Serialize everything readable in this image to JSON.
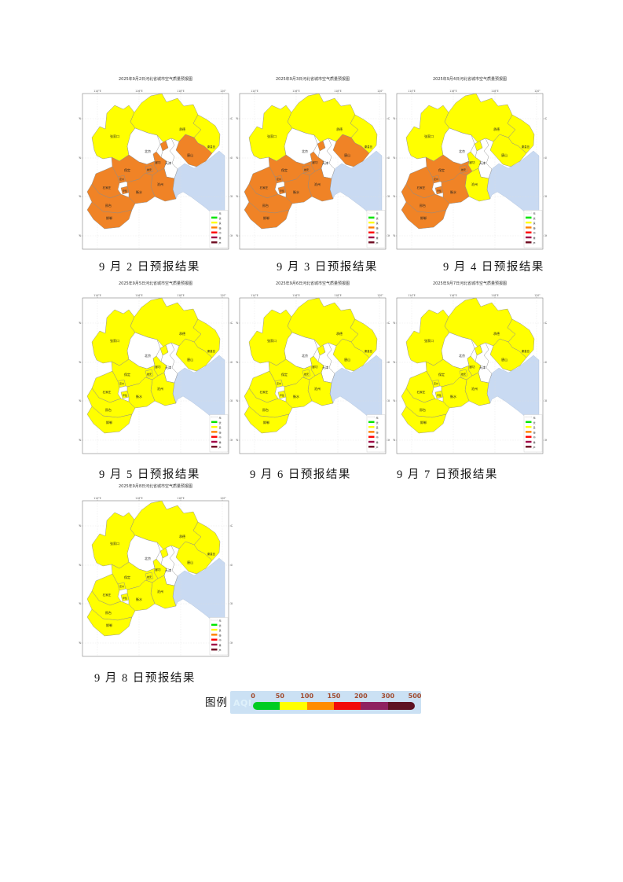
{
  "figures": [
    {
      "title": "2025年9月2日河北省城市空气质量预报图",
      "caption": "9 月 2 日预报结果",
      "levels": {
        "zhangjiakou": "liang",
        "chengde": "liang",
        "qinhuangdao": "liang",
        "tangshan": "qingdu",
        "langfang": "qingdu",
        "baoding": "qingdu",
        "xiongan": "qingdu",
        "cangzhou": "qingdu",
        "dingzhou": "qingdu",
        "shijiazhuang": "qingdu",
        "xinji": "qingdu",
        "hengshui": "qingdu",
        "xingtai": "qingdu",
        "handan": "qingdu"
      }
    },
    {
      "title": "2025年9月3日河北省城市空气质量预报图",
      "caption": "9 月 3 日预报结果",
      "levels": {
        "zhangjiakou": "liang",
        "chengde": "liang",
        "qinhuangdao": "liang",
        "tangshan": "qingdu",
        "langfang": "qingdu",
        "baoding": "qingdu",
        "xiongan": "qingdu",
        "cangzhou": "qingdu",
        "dingzhou": "qingdu",
        "shijiazhuang": "qingdu",
        "xinji": "qingdu",
        "hengshui": "qingdu",
        "xingtai": "qingdu",
        "handan": "qingdu"
      }
    },
    {
      "title": "2025年9月4日河北省城市空气质量预报图",
      "caption": "9 月 4 日预报结果",
      "levels": {
        "zhangjiakou": "liang",
        "chengde": "liang",
        "qinhuangdao": "liang",
        "tangshan": "liang",
        "langfang": "liang",
        "cangzhou": "liang",
        "baoding": "qingdu",
        "xiongan": "qingdu",
        "dingzhou": "qingdu",
        "shijiazhuang": "qingdu",
        "xinji": "qingdu",
        "hengshui": "qingdu",
        "xingtai": "qingdu",
        "handan": "qingdu"
      }
    },
    {
      "title": "2025年9月5日河北省城市空气质量预报图",
      "caption": "9 月 5 日预报结果",
      "levels": {
        "zhangjiakou": "liang",
        "chengde": "liang",
        "qinhuangdao": "liang",
        "tangshan": "liang",
        "langfang": "liang",
        "baoding": "liang",
        "xiongan": "liang",
        "cangzhou": "liang",
        "dingzhou": "liang",
        "shijiazhuang": "liang",
        "xinji": "liang",
        "hengshui": "liang",
        "xingtai": "liang",
        "handan": "liang"
      }
    },
    {
      "title": "2025年9月6日河北省城市空气质量预报图",
      "caption": "9 月 6 日预报结果",
      "levels": {
        "zhangjiakou": "liang",
        "chengde": "liang",
        "qinhuangdao": "liang",
        "tangshan": "liang",
        "langfang": "liang",
        "baoding": "liang",
        "xiongan": "liang",
        "cangzhou": "liang",
        "dingzhou": "liang",
        "shijiazhuang": "liang",
        "xinji": "liang",
        "hengshui": "liang",
        "xingtai": "liang",
        "handan": "liang"
      }
    },
    {
      "title": "2025年9月7日河北省城市空气质量预报图",
      "caption": "9 月 7 日预报结果",
      "levels": {
        "zhangjiakou": "liang",
        "chengde": "liang",
        "qinhuangdao": "liang",
        "tangshan": "liang",
        "langfang": "liang",
        "baoding": "liang",
        "xiongan": "liang",
        "cangzhou": "liang",
        "dingzhou": "liang",
        "shijiazhuang": "liang",
        "xinji": "liang",
        "hengshui": "liang",
        "xingtai": "liang",
        "handan": "liang"
      }
    },
    {
      "title": "2025年9月8日河北省城市空气质量预报图",
      "caption": "9 月 8 日预报结果",
      "levels": {
        "zhangjiakou": "liang",
        "chengde": "liang",
        "qinhuangdao": "liang",
        "tangshan": "liang",
        "langfang": "liang",
        "baoding": "liang",
        "xiongan": "liang",
        "cangzhou": "liang",
        "dingzhou": "liang",
        "shijiazhuang": "liang",
        "xinji": "liang",
        "hengshui": "liang",
        "xingtai": "liang",
        "handan": "liang"
      }
    }
  ],
  "cities": {
    "zhangjiakou": "张家口",
    "chengde": "承德",
    "qinhuangdao": "秦皇岛",
    "tangshan": "唐山",
    "beijing": "北京",
    "tianjin": "天津",
    "langfang": "廊坊",
    "baoding": "保定",
    "xiongan": "雄安",
    "cangzhou": "沧州",
    "dingzhou": "定州",
    "shijiazhuang": "石家庄",
    "xinji": "辛集",
    "hengshui": "衡水",
    "xingtai": "邢台",
    "handan": "邯郸"
  },
  "category_colors": {
    "liang": "#FFFF00",
    "qingdu": "#F08326",
    "none": "#FFFFFF"
  },
  "sea_color": "#C9DAF2",
  "map_axis": {
    "lon": [
      "114°E",
      "116°E",
      "118°E",
      "120°"
    ],
    "lat": [
      "42°N",
      "40°N",
      "38°N",
      "36°N"
    ]
  },
  "mini_legend": {
    "items": [
      {
        "label": "无",
        "color": "#FFFFFF"
      },
      {
        "label": "优",
        "color": "#00E400"
      },
      {
        "label": "良",
        "color": "#FFFF00"
      },
      {
        "label": "轻",
        "color": "#FF8000"
      },
      {
        "label": "中",
        "color": "#FF0000"
      },
      {
        "label": "重",
        "color": "#A00046"
      },
      {
        "label": "严",
        "color": "#6E0B20"
      }
    ]
  },
  "aqi_legend": {
    "label": "图例",
    "name": "AQI",
    "ticks": [
      "0",
      "50",
      "100",
      "150",
      "200",
      "300",
      "500"
    ],
    "segment_colors": [
      "#00CC22",
      "#FFFF00",
      "#FF8C00",
      "#F20A0A",
      "#8E2160",
      "#5E1222"
    ],
    "box_color": "#CBE1F4",
    "tick_color": "#A04A2E"
  }
}
